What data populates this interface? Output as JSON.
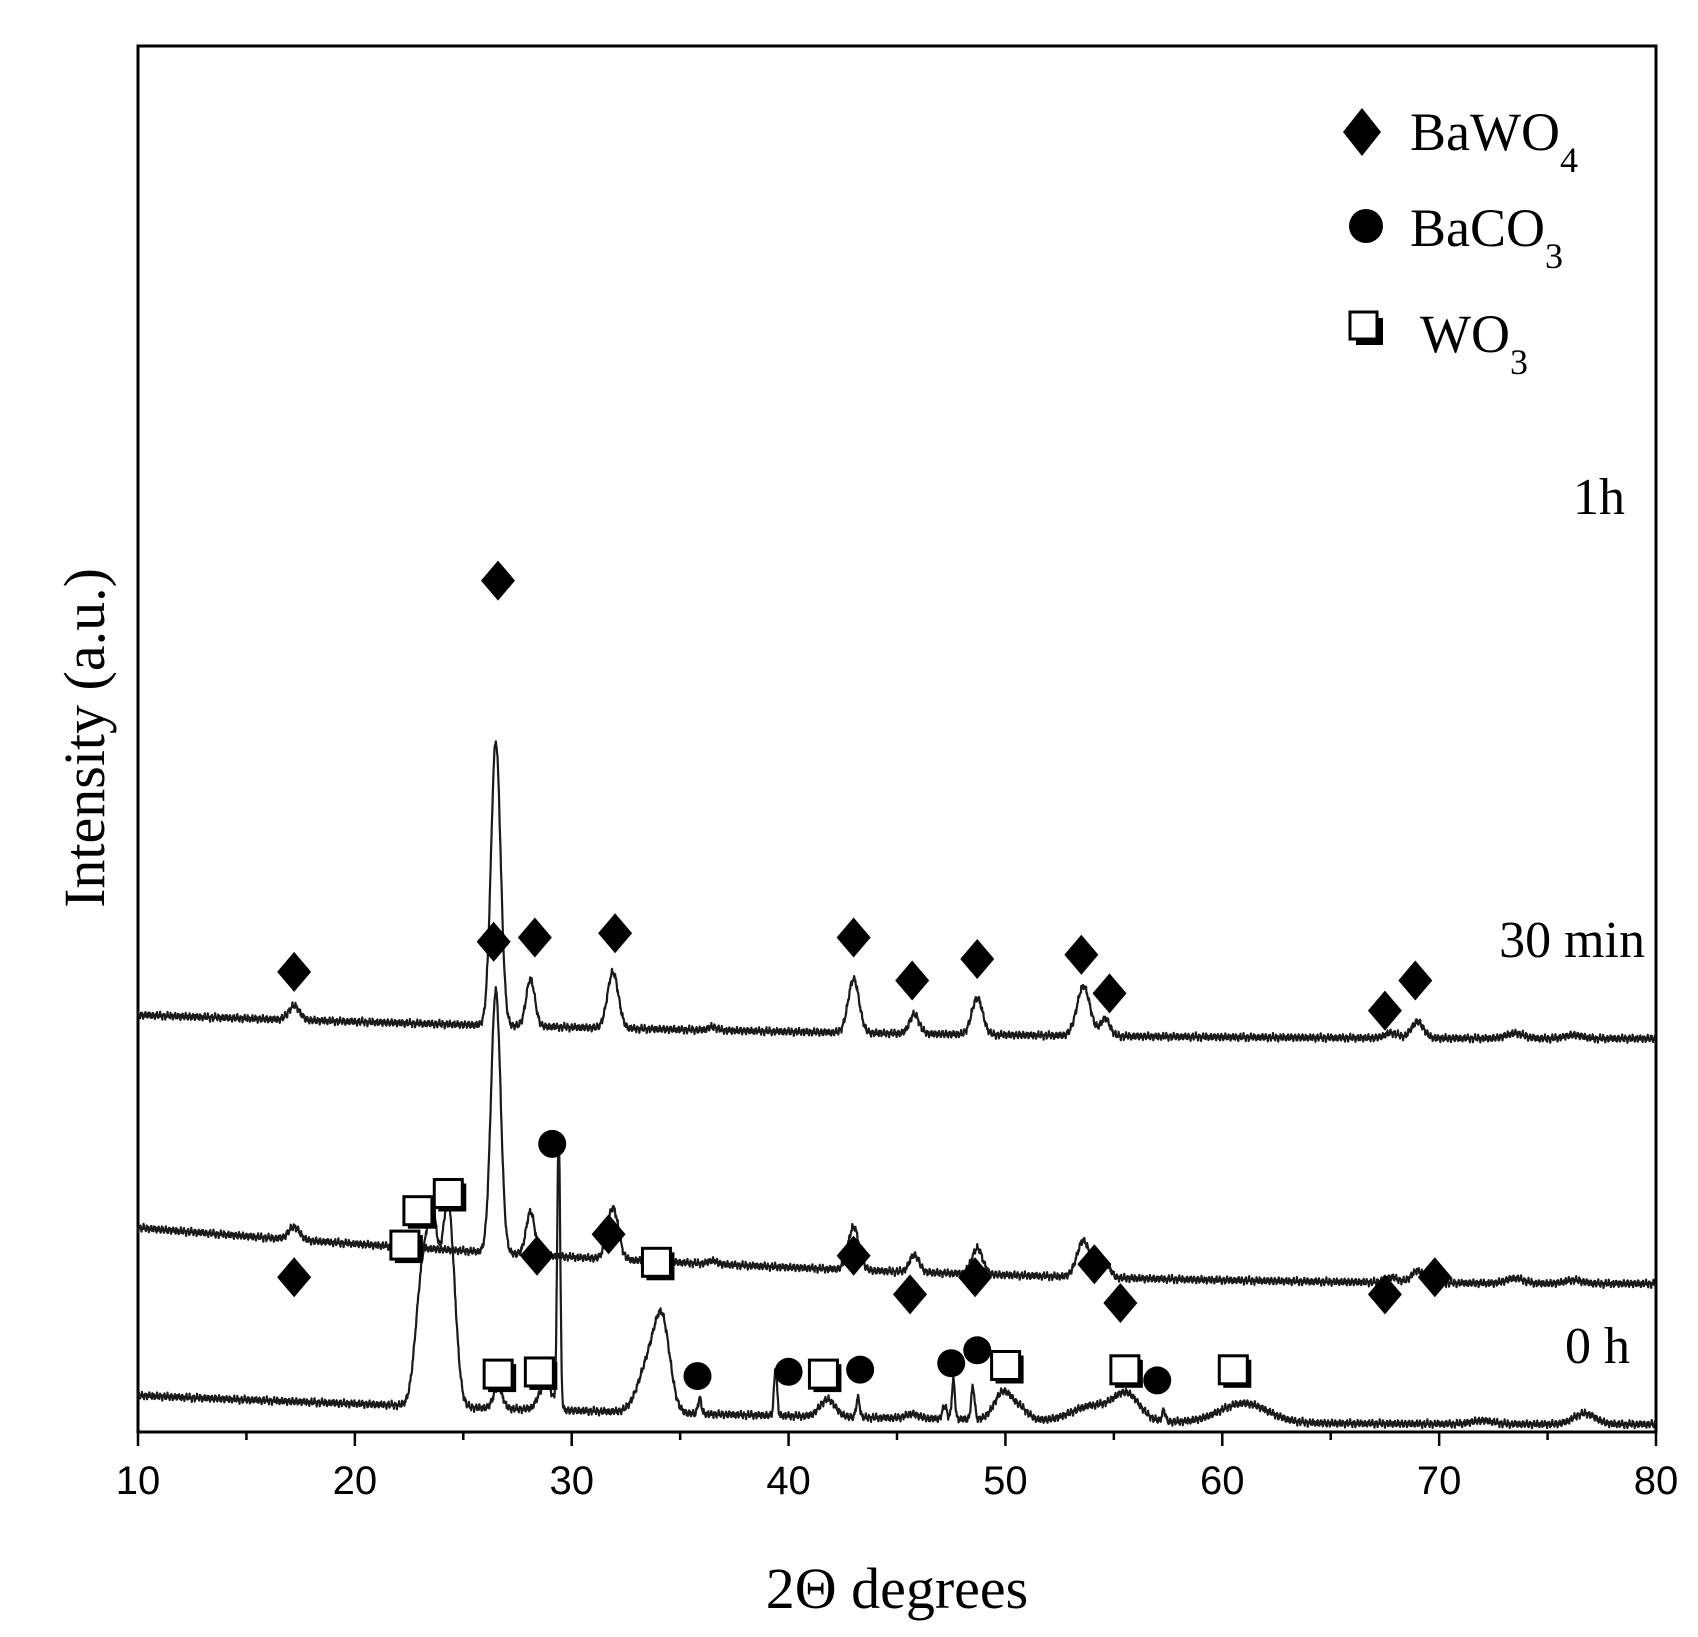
{
  "chart_data": {
    "type": "line",
    "title": "",
    "xlabel": "2Θ degrees",
    "ylabel": "Intensity (a.u.)",
    "xlim": [
      10,
      80
    ],
    "xticks": [
      "10",
      "20",
      "30",
      "40",
      "50",
      "60",
      "70",
      "80"
    ],
    "yticks": [],
    "grid": false,
    "legend": {
      "placement": "top-right",
      "entries": [
        {
          "marker": "diamond",
          "base": "BaWO",
          "sub": "4"
        },
        {
          "marker": "circle",
          "base": "BaCO",
          "sub": "3"
        },
        {
          "marker": "square",
          "base": "WO",
          "sub": "3"
        }
      ]
    },
    "series": [
      {
        "name": "1h",
        "label": "1h",
        "baseline_start": 1.3,
        "baseline_end": 0.75,
        "peaks": [
          {
            "x": 17.2,
            "h": 0.33,
            "w": 0.25
          },
          {
            "x": 26.5,
            "h": 6.6,
            "w": 0.22
          },
          {
            "x": 28.1,
            "h": 1.1,
            "w": 0.2
          },
          {
            "x": 31.9,
            "h": 1.3,
            "w": 0.25
          },
          {
            "x": 36.5,
            "h": 0.08,
            "w": 0.2
          },
          {
            "x": 43.0,
            "h": 1.25,
            "w": 0.25
          },
          {
            "x": 45.8,
            "h": 0.45,
            "w": 0.22
          },
          {
            "x": 48.7,
            "h": 0.85,
            "w": 0.25
          },
          {
            "x": 53.6,
            "h": 1.15,
            "w": 0.3
          },
          {
            "x": 54.6,
            "h": 0.4,
            "w": 0.22
          },
          {
            "x": 67.8,
            "h": 0.12,
            "w": 0.3
          },
          {
            "x": 69.0,
            "h": 0.38,
            "w": 0.28
          },
          {
            "x": 73.5,
            "h": 0.12,
            "w": 0.4
          },
          {
            "x": 76.2,
            "h": 0.08,
            "w": 0.4
          }
        ],
        "markers": [
          {
            "type": "diamond",
            "x": 17.2,
            "y": 10.7
          },
          {
            "type": "diamond",
            "x": 26.6,
            "y": 19.8
          },
          {
            "type": "diamond",
            "x": 28.3,
            "y": 11.5
          },
          {
            "type": "diamond",
            "x": 32.0,
            "y": 11.6
          },
          {
            "type": "diamond",
            "x": 43.0,
            "y": 11.5
          },
          {
            "type": "diamond",
            "x": 45.7,
            "y": 10.5
          },
          {
            "type": "diamond",
            "x": 48.7,
            "y": 11.0
          },
          {
            "type": "diamond",
            "x": 53.5,
            "y": 11.1
          },
          {
            "type": "diamond",
            "x": 54.8,
            "y": 10.2
          },
          {
            "type": "diamond",
            "x": 67.5,
            "y": 9.8
          },
          {
            "type": "diamond",
            "x": 68.9,
            "y": 10.5
          }
        ]
      },
      {
        "name": "30 min",
        "label": "30 min",
        "baseline_start": 1.35,
        "baseline_end": 0.05,
        "peaks": [
          {
            "x": 17.2,
            "h": 0.3,
            "w": 0.25
          },
          {
            "x": 26.5,
            "h": 6.1,
            "w": 0.22
          },
          {
            "x": 28.1,
            "h": 1.0,
            "w": 0.2
          },
          {
            "x": 31.9,
            "h": 1.2,
            "w": 0.25
          },
          {
            "x": 36.5,
            "h": 0.08,
            "w": 0.2
          },
          {
            "x": 43.0,
            "h": 1.0,
            "w": 0.25
          },
          {
            "x": 45.8,
            "h": 0.4,
            "w": 0.22
          },
          {
            "x": 48.7,
            "h": 0.6,
            "w": 0.25
          },
          {
            "x": 53.6,
            "h": 0.85,
            "w": 0.3
          },
          {
            "x": 54.6,
            "h": 0.35,
            "w": 0.22
          },
          {
            "x": 67.8,
            "h": 0.12,
            "w": 0.3
          },
          {
            "x": 69.0,
            "h": 0.28,
            "w": 0.28
          },
          {
            "x": 73.5,
            "h": 0.12,
            "w": 0.4
          },
          {
            "x": 76.2,
            "h": 0.08,
            "w": 0.4
          }
        ],
        "markers": [
          {
            "type": "diamond",
            "x": 17.2,
            "y": 3.6
          },
          {
            "type": "diamond",
            "x": 26.4,
            "y": 11.4
          },
          {
            "type": "diamond",
            "x": 28.4,
            "y": 4.1
          },
          {
            "type": "diamond",
            "x": 31.7,
            "y": 4.6
          },
          {
            "type": "diamond",
            "x": 43.0,
            "y": 4.1
          },
          {
            "type": "diamond",
            "x": 45.6,
            "y": 3.2
          },
          {
            "type": "diamond",
            "x": 48.6,
            "y": 3.6
          },
          {
            "type": "diamond",
            "x": 54.1,
            "y": 3.9
          },
          {
            "type": "diamond",
            "x": 55.3,
            "y": 3.0
          },
          {
            "type": "diamond",
            "x": 67.5,
            "y": 3.2
          },
          {
            "type": "diamond",
            "x": 69.8,
            "y": 3.6
          }
        ]
      },
      {
        "name": "0 h",
        "label": "0 h",
        "baseline_start": 0.85,
        "baseline_end": 0.18,
        "peaks": [
          {
            "x": 23.1,
            "h": 2.9,
            "w": 0.3
          },
          {
            "x": 23.6,
            "h": 3.6,
            "w": 0.25
          },
          {
            "x": 24.3,
            "h": 4.7,
            "w": 0.3
          },
          {
            "x": 26.6,
            "h": 0.5,
            "w": 0.2
          },
          {
            "x": 28.8,
            "h": 0.6,
            "w": 0.3
          },
          {
            "x": 29.4,
            "h": 6.4,
            "w": 0.07
          },
          {
            "x": 33.6,
            "h": 1.2,
            "w": 0.5
          },
          {
            "x": 34.2,
            "h": 1.7,
            "w": 0.35
          },
          {
            "x": 35.9,
            "h": 0.35,
            "w": 0.08
          },
          {
            "x": 39.4,
            "h": 1.1,
            "w": 0.07
          },
          {
            "x": 41.8,
            "h": 0.4,
            "w": 0.35
          },
          {
            "x": 43.2,
            "h": 0.45,
            "w": 0.08
          },
          {
            "x": 45.7,
            "h": 0.1,
            "w": 0.3
          },
          {
            "x": 47.2,
            "h": 0.3,
            "w": 0.1
          },
          {
            "x": 47.6,
            "h": 0.9,
            "w": 0.07
          },
          {
            "x": 48.5,
            "h": 0.75,
            "w": 0.08
          },
          {
            "x": 49.9,
            "h": 0.65,
            "w": 0.4
          },
          {
            "x": 50.7,
            "h": 0.25,
            "w": 0.35
          },
          {
            "x": 54.0,
            "h": 0.35,
            "w": 0.9
          },
          {
            "x": 55.6,
            "h": 0.6,
            "w": 0.6
          },
          {
            "x": 57.3,
            "h": 0.25,
            "w": 0.08
          },
          {
            "x": 61.0,
            "h": 0.45,
            "w": 1.1
          },
          {
            "x": 72.0,
            "h": 0.08,
            "w": 0.5
          },
          {
            "x": 76.7,
            "h": 0.25,
            "w": 0.5
          }
        ],
        "markers": [
          {
            "type": "square",
            "x": 22.4,
            "y": 4.3
          },
          {
            "type": "square",
            "x": 23.0,
            "y": 5.1
          },
          {
            "type": "square",
            "x": 24.4,
            "y": 5.5
          },
          {
            "type": "circle",
            "x": 29.1,
            "y": 6.7
          },
          {
            "type": "square",
            "x": 26.7,
            "y": 1.3
          },
          {
            "type": "square",
            "x": 28.6,
            "y": 1.35
          },
          {
            "type": "square",
            "x": 34.0,
            "y": 3.9
          },
          {
            "type": "circle",
            "x": 35.8,
            "y": 1.3
          },
          {
            "type": "circle",
            "x": 40.0,
            "y": 1.4
          },
          {
            "type": "square",
            "x": 41.7,
            "y": 1.3
          },
          {
            "type": "circle",
            "x": 43.3,
            "y": 1.45
          },
          {
            "type": "circle",
            "x": 47.5,
            "y": 1.6
          },
          {
            "type": "circle",
            "x": 48.7,
            "y": 1.9
          },
          {
            "type": "square",
            "x": 50.1,
            "y": 1.5
          },
          {
            "type": "square",
            "x": 55.6,
            "y": 1.4
          },
          {
            "type": "circle",
            "x": 57.0,
            "y": 1.2
          },
          {
            "type": "square",
            "x": 60.6,
            "y": 1.4
          }
        ]
      }
    ]
  }
}
